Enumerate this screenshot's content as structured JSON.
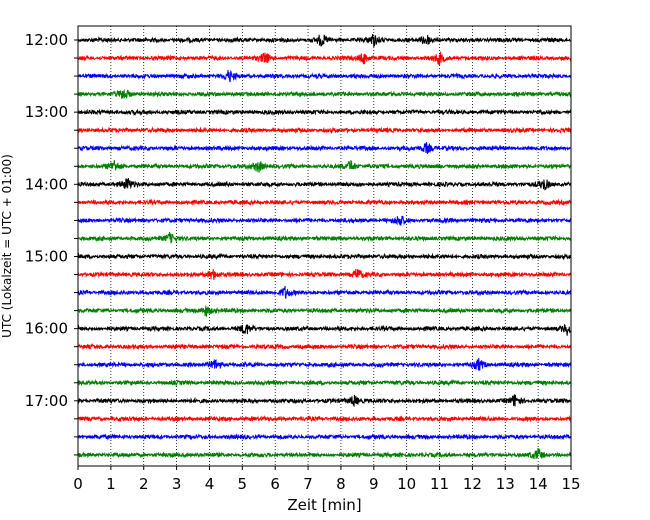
{
  "chart_data": {
    "type": "line",
    "subtype": "helicorder",
    "xlabel": "Zeit  [min]",
    "ylabel": "UTC (Lokalzeit = UTC + 01:00)",
    "xlim": [
      0,
      15
    ],
    "x_ticks": [
      "0",
      "1",
      "2",
      "3",
      "4",
      "5",
      "6",
      "7",
      "8",
      "9",
      "10",
      "11",
      "12",
      "13",
      "14",
      "15"
    ],
    "y_tick_labels": [
      "12:00",
      "13:00",
      "14:00",
      "15:00",
      "16:00",
      "17:00"
    ],
    "grid": "vertical dotted lines at each minute",
    "minutes_per_line": 15,
    "trace_colors": [
      "#000000",
      "#ff0000",
      "#0000ff",
      "#008000"
    ],
    "trace_start_times": [
      "12:00",
      "12:15",
      "12:30",
      "12:45",
      "13:00",
      "13:15",
      "13:30",
      "13:45",
      "14:00",
      "14:15",
      "14:30",
      "14:45",
      "15:00",
      "15:15",
      "15:30",
      "15:45",
      "16:00",
      "16:15",
      "16:30",
      "16:45",
      "17:00",
      "17:15",
      "17:30",
      "17:45"
    ],
    "notable_events": [
      {
        "line": "12:00",
        "minute": 7.4
      },
      {
        "line": "12:00",
        "minute": 9.0
      },
      {
        "line": "12:00",
        "minute": 10.6
      },
      {
        "line": "12:15",
        "minute": 5.7
      },
      {
        "line": "12:15",
        "minute": 8.7
      },
      {
        "line": "12:15",
        "minute": 11.0
      },
      {
        "line": "12:30",
        "minute": 4.6
      },
      {
        "line": "12:45",
        "minute": 1.4
      },
      {
        "line": "13:30",
        "minute": 10.6
      },
      {
        "line": "13:45",
        "minute": 1.1
      },
      {
        "line": "13:45",
        "minute": 5.5
      },
      {
        "line": "13:45",
        "minute": 8.3
      },
      {
        "line": "14:00",
        "minute": 1.5
      },
      {
        "line": "14:00",
        "minute": 14.2
      },
      {
        "line": "14:30",
        "minute": 9.8
      },
      {
        "line": "14:45",
        "minute": 2.8
      },
      {
        "line": "15:15",
        "minute": 4.1
      },
      {
        "line": "15:15",
        "minute": 8.5
      },
      {
        "line": "15:30",
        "minute": 6.3
      },
      {
        "line": "15:45",
        "minute": 3.9
      },
      {
        "line": "16:00",
        "minute": 5.1
      },
      {
        "line": "16:00",
        "minute": 14.9
      },
      {
        "line": "16:30",
        "minute": 4.2
      },
      {
        "line": "16:30",
        "minute": 12.2
      },
      {
        "line": "17:00",
        "minute": 8.4
      },
      {
        "line": "17:00",
        "minute": 13.3
      },
      {
        "line": "17:45",
        "minute": 14.0
      }
    ]
  }
}
